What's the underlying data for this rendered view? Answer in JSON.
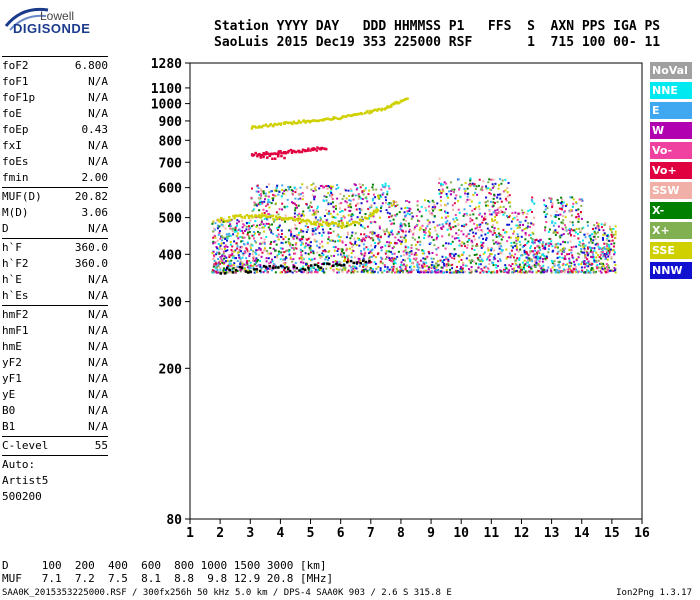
{
  "logo": {
    "top": "Lowell",
    "main": "DIGISONDE"
  },
  "header": {
    "line1": "Station YYYY DAY   DDD HHMMSS P1   FFS  S  AXN PPS IGA PS",
    "line2": "SaoLuis 2015 Dec19 353 225000 RSF       1  715 100 00- 11"
  },
  "params": [
    [
      {
        "name": "foF2",
        "value": "6.800"
      },
      {
        "name": "foF1",
        "value": "N/A"
      },
      {
        "name": "foF1p",
        "value": "N/A"
      },
      {
        "name": "foE",
        "value": "N/A"
      },
      {
        "name": "foEp",
        "value": "0.43"
      },
      {
        "name": "fxI",
        "value": "N/A"
      },
      {
        "name": "foEs",
        "value": "N/A"
      },
      {
        "name": "fmin",
        "value": "2.00"
      }
    ],
    [
      {
        "name": "MUF(D)",
        "value": "20.82"
      },
      {
        "name": "M(D)",
        "value": "3.06"
      },
      {
        "name": "D",
        "value": "N/A"
      }
    ],
    [
      {
        "name": "h`F",
        "value": "360.0"
      },
      {
        "name": "h`F2",
        "value": "360.0"
      },
      {
        "name": "h`E",
        "value": "N/A"
      },
      {
        "name": "h`Es",
        "value": "N/A"
      }
    ],
    [
      {
        "name": "hmF2",
        "value": "N/A"
      },
      {
        "name": "hmF1",
        "value": "N/A"
      },
      {
        "name": "hmE",
        "value": "N/A"
      },
      {
        "name": "yF2",
        "value": "N/A"
      },
      {
        "name": "yF1",
        "value": "N/A"
      },
      {
        "name": "yE",
        "value": "N/A"
      },
      {
        "name": "B0",
        "value": "N/A"
      },
      {
        "name": "B1",
        "value": "N/A"
      }
    ],
    [
      {
        "name": "C-level",
        "value": "55"
      }
    ]
  ],
  "auto": {
    "line1": "Auto:",
    "line2": "Artist5",
    "line3": "500200"
  },
  "legend": [
    {
      "label": "NoVal",
      "color": "#a0a0a0"
    },
    {
      "label": "NNE",
      "color": "#00e8f0"
    },
    {
      "label": "E",
      "color": "#40a8f0"
    },
    {
      "label": "W",
      "color": "#b000b0"
    },
    {
      "label": "Vo-",
      "color": "#f040a0"
    },
    {
      "label": "Vo+",
      "color": "#e00040"
    },
    {
      "label": "SSW",
      "color": "#f0b0a8"
    },
    {
      "label": "X-",
      "color": "#008000"
    },
    {
      "label": "X+",
      "color": "#80b050"
    },
    {
      "label": "SSE",
      "color": "#d0d000"
    },
    {
      "label": "NNW",
      "color": "#1010d0"
    }
  ],
  "muf_table": {
    "line1": "D     100  200  400  600  800 1000 1500 3000 [km]",
    "line2": "MUF   7.1  7.2  7.5  8.1  8.8  9.8 12.9 20.8 [MHz]"
  },
  "footer": {
    "left": "SAA0K_2015353225000.RSF / 300fx256h 50 kHz 5.0 km / DPS-4 SAA0K 903 / 2.6 S 315.8 E",
    "right": "Ion2Png 1.3.17"
  },
  "chart_data": {
    "type": "scatter",
    "title": "",
    "xlabel": "",
    "ylabel": "",
    "xlim": [
      1,
      16
    ],
    "ylim": [
      80,
      1280
    ],
    "x_ticks": [
      1,
      2,
      3,
      4,
      5,
      6,
      7,
      8,
      9,
      10,
      11,
      12,
      13,
      14,
      15,
      16
    ],
    "y_ticks": [
      80,
      200,
      300,
      400,
      500,
      600,
      700,
      800,
      900,
      1000,
      1100,
      1280
    ],
    "y_scale": "log",
    "series": [
      {
        "color": "#d0d000",
        "points": [
          [
            1.9,
            495
          ],
          [
            2.5,
            505
          ],
          [
            3.0,
            510
          ],
          [
            3.5,
            505
          ],
          [
            4.0,
            500
          ],
          [
            4.5,
            495
          ],
          [
            5.0,
            490
          ],
          [
            5.5,
            485
          ],
          [
            6.0,
            480
          ],
          [
            6.5,
            490
          ],
          [
            7.0,
            510
          ],
          [
            7.2,
            530
          ]
        ]
      },
      {
        "color": "#d0d000",
        "points": [
          [
            3.0,
            870
          ],
          [
            3.5,
            880
          ],
          [
            4.0,
            890
          ],
          [
            4.5,
            900
          ],
          [
            5.0,
            905
          ],
          [
            5.5,
            915
          ],
          [
            6.0,
            925
          ],
          [
            6.5,
            945
          ],
          [
            7.0,
            960
          ],
          [
            7.5,
            985
          ],
          [
            7.8,
            1010
          ],
          [
            8.2,
            1040
          ]
        ]
      },
      {
        "color": "#e00040",
        "points": [
          [
            3.0,
            740
          ],
          [
            3.5,
            745
          ],
          [
            4.0,
            750
          ],
          [
            4.5,
            755
          ],
          [
            5.0,
            760
          ],
          [
            5.5,
            770
          ],
          [
            3.2,
            730
          ],
          [
            4.2,
            725
          ]
        ]
      },
      {
        "color": "#000000",
        "points": [
          [
            2.0,
            365
          ],
          [
            3.0,
            368
          ],
          [
            4.0,
            370
          ],
          [
            5.0,
            372
          ],
          [
            6.0,
            378
          ],
          [
            7.0,
            390
          ]
        ]
      }
    ]
  }
}
